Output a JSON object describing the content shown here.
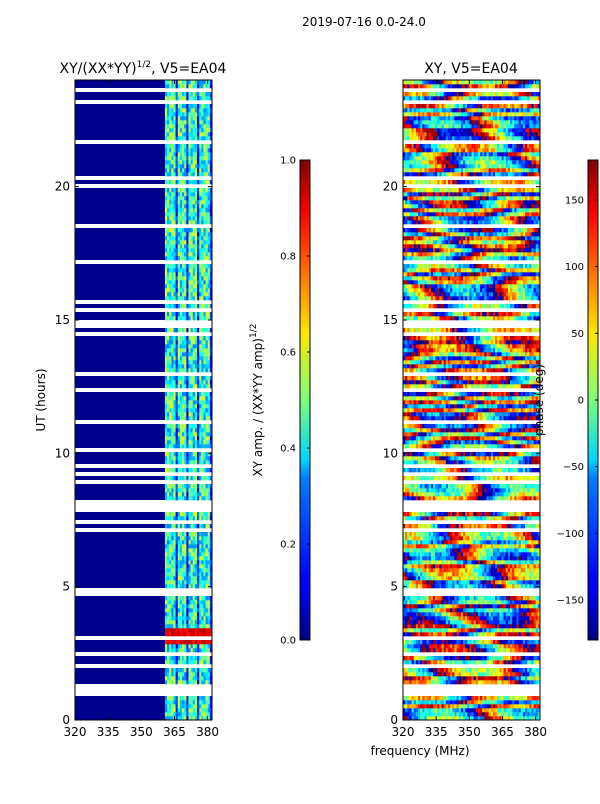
{
  "suptitle": "2019-07-16 0.0-24.0",
  "chart_data": [
    {
      "type": "heatmap",
      "id": "amp",
      "title_main": "XY/(XX*YY)",
      "title_sup": "1/2",
      "title_suffix": ", V5=EA04",
      "ylabel": "UT (hours)",
      "xlabel": "",
      "xlim": [
        320,
        382
      ],
      "ylim": [
        0,
        24
      ],
      "xticks": [
        320,
        335,
        350,
        365,
        380
      ],
      "yticks": [
        0,
        5,
        10,
        15,
        20
      ],
      "colorbar": {
        "label_main": "XY amp. / (XX*YY amp)",
        "label_sup": "1/2",
        "range": [
          0.0,
          1.0
        ],
        "ticks": [
          "0.0",
          "0.2",
          "0.4",
          "0.6",
          "0.8",
          "1.0"
        ],
        "tick_values": [
          0.0,
          0.2,
          0.4,
          0.6,
          0.8,
          1.0
        ],
        "colormap": "jet"
      },
      "description_channels": "amplitude near 0 below ~361 MHz; elevated 0.3-0.6 between ~361-381 MHz; peaks near 0.9 around 3 h"
    },
    {
      "type": "heatmap",
      "id": "phase",
      "title_main": "XY, V5=EA04",
      "ylabel": "",
      "xlabel": "frequency (MHz)",
      "xlim": [
        320,
        382
      ],
      "ylim": [
        0,
        24
      ],
      "xticks": [
        320,
        335,
        350,
        365,
        380
      ],
      "yticks": [
        0,
        5,
        10,
        15,
        20
      ],
      "colorbar": {
        "label_main": "phase (deg)",
        "range": [
          -180,
          180
        ],
        "ticks": [
          "−150",
          "−100",
          "−50",
          "0",
          "50",
          "100",
          "150"
        ],
        "tick_values": [
          -150,
          -100,
          -50,
          0,
          50,
          100,
          150
        ],
        "colormap": "jet"
      }
    }
  ]
}
